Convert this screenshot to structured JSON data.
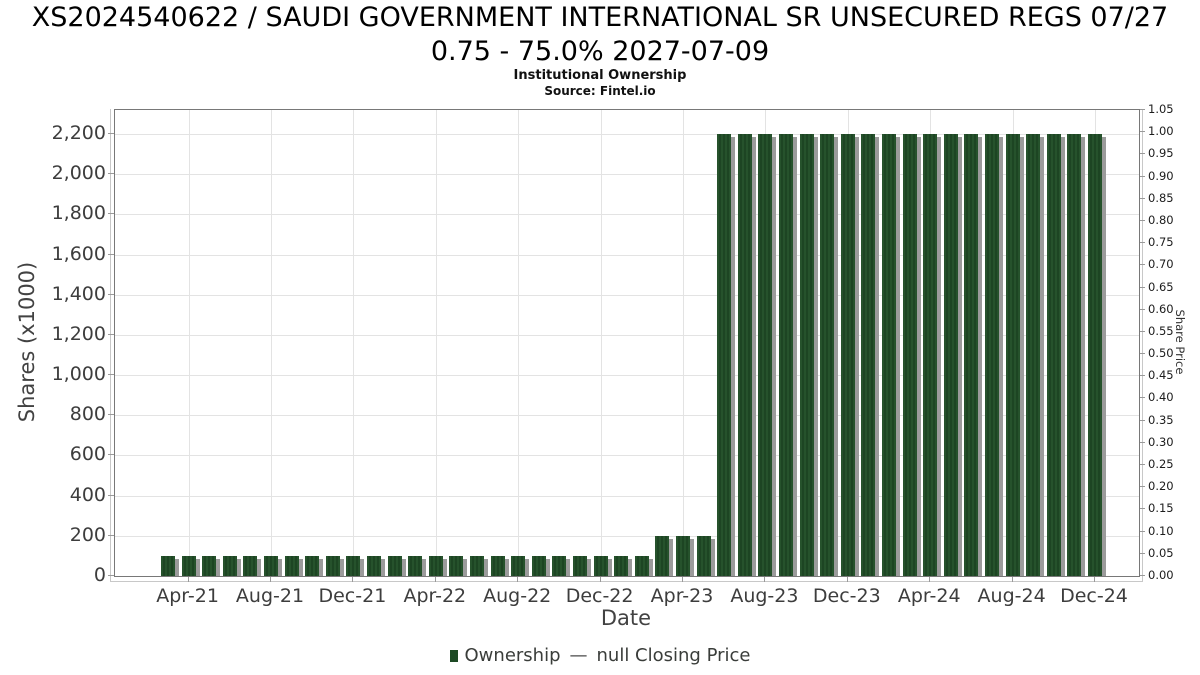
{
  "header": {
    "title_line1": "XS2024540622 / SAUDI GOVERNMENT INTERNATIONAL SR UNSECURED REGS 07/27",
    "title_line2": "0.75 - 75.0% 2027-07-09",
    "subtitle": "Institutional Ownership",
    "source": "Source: Fintel.io"
  },
  "chart_data": {
    "type": "bar",
    "title": "Institutional Ownership",
    "xlabel": "Date",
    "ylabel_left": "Shares (x1000)",
    "ylabel_right": "Share Price",
    "grid": true,
    "legend_position": "bottom",
    "ylim_left": [
      0,
      2320
    ],
    "ylim_right": [
      0.0,
      1.05
    ],
    "categories": [
      "Mar-21",
      "Apr-21",
      "May-21",
      "Jun-21",
      "Jul-21",
      "Aug-21",
      "Sep-21",
      "Oct-21",
      "Nov-21",
      "Dec-21",
      "Jan-22",
      "Feb-22",
      "Mar-22",
      "Apr-22",
      "May-22",
      "Jun-22",
      "Jul-22",
      "Aug-22",
      "Sep-22",
      "Oct-22",
      "Nov-22",
      "Dec-22",
      "Jan-23",
      "Feb-23",
      "Mar-23",
      "Apr-23",
      "May-23",
      "Jun-23",
      "Jul-23",
      "Aug-23",
      "Sep-23",
      "Oct-23",
      "Nov-23",
      "Dec-23",
      "Jan-24",
      "Feb-24",
      "Mar-24",
      "Apr-24",
      "May-24",
      "Jun-24",
      "Jul-24",
      "Aug-24",
      "Sep-24",
      "Oct-24",
      "Nov-24",
      "Dec-24"
    ],
    "series": [
      {
        "name": "Ownership",
        "type": "bar",
        "axis": "left",
        "color": "#1d4a24",
        "values": [
          100,
          100,
          100,
          100,
          100,
          100,
          100,
          100,
          100,
          100,
          100,
          100,
          100,
          100,
          100,
          100,
          100,
          100,
          100,
          100,
          100,
          100,
          100,
          100,
          200,
          200,
          200,
          2200,
          2200,
          2200,
          2200,
          2200,
          2200,
          2200,
          2200,
          2200,
          2200,
          2200,
          2200,
          2200,
          2200,
          2200,
          2200,
          2200,
          2200,
          2200
        ]
      },
      {
        "name": "null Closing Price",
        "type": "line",
        "axis": "right",
        "color": "#4a4a4a",
        "values": []
      }
    ],
    "x_tick_labels": [
      "Apr-21",
      "Aug-21",
      "Dec-21",
      "Apr-22",
      "Aug-22",
      "Dec-22",
      "Apr-23",
      "Aug-23",
      "Dec-23",
      "Apr-24",
      "Aug-24",
      "Dec-24"
    ],
    "x_tick_month_indices": [
      1,
      5,
      9,
      13,
      17,
      21,
      25,
      29,
      33,
      37,
      41,
      45
    ],
    "y_ticks_left_values": [
      0,
      200,
      400,
      600,
      800,
      1000,
      1200,
      1400,
      1600,
      1800,
      2000,
      2200
    ],
    "y_ticks_left_labels": [
      "0",
      "200",
      "400",
      "600",
      "800",
      "1,000",
      "1,200",
      "1,400",
      "1,600",
      "1,800",
      "2,000",
      "2,200"
    ],
    "y_ticks_right_labels": [
      "0.00",
      "0.05",
      "0.10",
      "0.15",
      "0.20",
      "0.25",
      "0.30",
      "0.35",
      "0.40",
      "0.45",
      "0.50",
      "0.55",
      "0.60",
      "0.65",
      "0.70",
      "0.75",
      "0.80",
      "0.85",
      "0.90",
      "0.95",
      "1.00",
      "1.05"
    ]
  },
  "legend": {
    "items": [
      {
        "label": "Ownership",
        "marker": "square",
        "color": "#1d4a24"
      },
      {
        "label": "null Closing Price",
        "marker": "dash",
        "color": "#4a4a4a"
      }
    ],
    "dash_glyph": "—"
  },
  "colors": {
    "bar_green": "#1d4a24",
    "bar_stripe_light": "#26522c",
    "bar_shadow": "#9b9b9b",
    "gridline": "#e3e3e3",
    "plot_border": "#787878",
    "tick_text": "#3d3d3d"
  }
}
